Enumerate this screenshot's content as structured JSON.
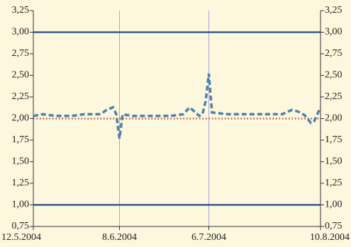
{
  "chart_data": {
    "type": "line",
    "xlim": [
      "2004-05-12",
      "2004-08-10"
    ],
    "xticks": [
      {
        "value": "2004-05-12",
        "label": "12.5.2004"
      },
      {
        "value": "2004-06-08",
        "label": "8.6.2004"
      },
      {
        "value": "2004-07-06",
        "label": "6.7.2004"
      },
      {
        "value": "2004-08-10",
        "label": "10.8.2004"
      }
    ],
    "ylim": [
      0.75,
      3.25
    ],
    "yticks": [
      {
        "value": 0.75,
        "label": "0,75"
      },
      {
        "value": 1,
        "label": "1,00"
      },
      {
        "value": 1.25,
        "label": "1,25"
      },
      {
        "value": 1.5,
        "label": "1,50"
      },
      {
        "value": 1.75,
        "label": "1,75"
      },
      {
        "value": 2,
        "label": "2,00"
      },
      {
        "value": 2.25,
        "label": "2,25"
      },
      {
        "value": 2.5,
        "label": "2,50"
      },
      {
        "value": 2.75,
        "label": "2,75"
      },
      {
        "value": 3,
        "label": "3,00"
      },
      {
        "value": 3.25,
        "label": "3,25"
      }
    ],
    "grid_x": true,
    "series": [
      {
        "color": "#1f4e8c",
        "style": "solid",
        "x": [
          "2004-05-12",
          "2004-08-10"
        ],
        "values": [
          3,
          3
        ]
      },
      {
        "color": "#1f4e8c",
        "style": "solid",
        "x": [
          "2004-05-12",
          "2004-08-10"
        ],
        "values": [
          1,
          1
        ]
      },
      {
        "color": "#c0392b",
        "style": "dotted",
        "x": [
          "2004-05-12",
          "2004-08-10"
        ],
        "values": [
          2,
          2
        ]
      },
      {
        "color": "#4f81a8",
        "style": "dashed",
        "x": [
          "2004-05-12",
          "2004-05-15",
          "2004-05-19",
          "2004-05-24",
          "2004-05-28",
          "2004-06-02",
          "2004-06-04",
          "2004-06-06",
          "2004-06-07",
          "2004-06-08",
          "2004-06-09",
          "2004-06-12",
          "2004-06-15",
          "2004-06-19",
          "2004-06-24",
          "2004-06-28",
          "2004-06-30",
          "2004-07-03",
          "2004-07-04",
          "2004-07-05",
          "2004-07-06",
          "2004-07-07",
          "2004-07-12",
          "2004-07-16",
          "2004-07-21",
          "2004-07-25",
          "2004-07-29",
          "2004-08-01",
          "2004-08-03",
          "2004-08-05",
          "2004-08-07",
          "2004-08-08",
          "2004-08-10"
        ],
        "values": [
          2.03,
          2.05,
          2.03,
          2.03,
          2.05,
          2.05,
          2.1,
          2.13,
          2.05,
          1.77,
          2.05,
          2.03,
          2.03,
          2.03,
          2.03,
          2.05,
          2.13,
          2.03,
          2.05,
          2.2,
          2.52,
          2.07,
          2.05,
          2.05,
          2.05,
          2.05,
          2.05,
          2.1,
          2.08,
          2.04,
          1.95,
          1.97,
          2.13
        ]
      }
    ]
  }
}
